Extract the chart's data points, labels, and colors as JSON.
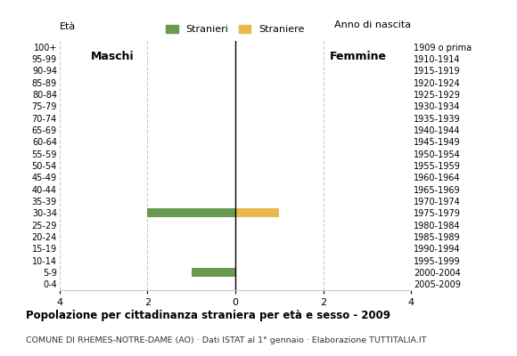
{
  "age_groups_bottom_to_top": [
    "0-4",
    "5-9",
    "10-14",
    "15-19",
    "20-24",
    "25-29",
    "30-34",
    "35-39",
    "40-44",
    "45-49",
    "50-54",
    "55-59",
    "60-64",
    "65-69",
    "70-74",
    "75-79",
    "80-84",
    "85-89",
    "90-94",
    "95-99",
    "100+"
  ],
  "birth_years_bottom_to_top": [
    "2005-2009",
    "2000-2004",
    "1995-1999",
    "1990-1994",
    "1985-1989",
    "1980-1984",
    "1975-1979",
    "1970-1974",
    "1965-1969",
    "1960-1964",
    "1955-1959",
    "1950-1954",
    "1945-1949",
    "1940-1944",
    "1935-1939",
    "1930-1934",
    "1925-1929",
    "1920-1924",
    "1915-1919",
    "1910-1914",
    "1909 o prima"
  ],
  "males_bottom_to_top": [
    0,
    1,
    0,
    0,
    0,
    0,
    2,
    0,
    0,
    0,
    0,
    0,
    0,
    0,
    0,
    0,
    0,
    0,
    0,
    0,
    0
  ],
  "females_bottom_to_top": [
    0,
    0,
    0,
    0,
    0,
    0,
    1,
    0,
    0,
    0,
    0,
    0,
    0,
    0,
    0,
    0,
    0,
    0,
    0,
    0,
    0
  ],
  "male_color": "#6a9a4f",
  "female_color": "#e8b84b",
  "grid_color": "#cccccc",
  "axis_line_color": "#000000",
  "xlim": 4,
  "xticks": [
    -4,
    -2,
    0,
    2,
    4
  ],
  "xticklabels": [
    "4",
    "2",
    "0",
    "2",
    "4"
  ],
  "legend_male": "Stranieri",
  "legend_female": "Straniere",
  "label_maschi": "Maschi",
  "label_femmine": "Femmine",
  "label_eta": "Età",
  "label_anno": "Anno di nascita",
  "title": "Popolazione per cittadinanza straniera per età e sesso - 2009",
  "subtitle": "COMUNE DI RHEMES-NOTRE-DAME (AO) · Dati ISTAT al 1° gennaio · Elaborazione TUTTITALIA.IT",
  "bg_color": "#ffffff"
}
